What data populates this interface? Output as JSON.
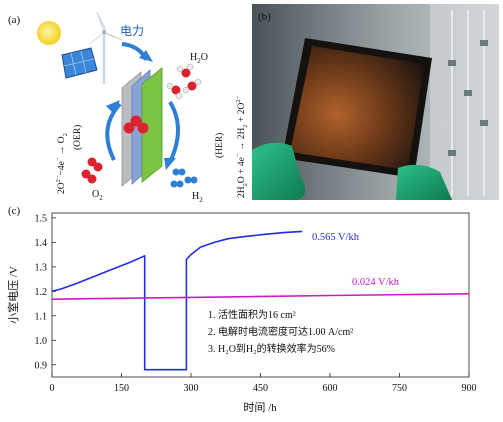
{
  "panels": {
    "a": {
      "label": "(a)",
      "power_text": "电力",
      "h2o": [
        "H",
        "2",
        "O"
      ],
      "h2": [
        "H",
        "2"
      ],
      "o2": [
        "O",
        "2"
      ],
      "her": "(HER)",
      "oer": "(OER)"
    },
    "b": {
      "label": "(b)"
    },
    "c": {
      "label": "(c)"
    }
  },
  "colors": {
    "sun": "#f5d21a",
    "blue_arrow": "#2f7fd6",
    "green_electrode": "#7cc544",
    "membrane": "#8aa3d6",
    "oxygen_red": "#d9232e",
    "hydrogen_blue": "#2f7fd6",
    "series_blue": "#1f2fe0",
    "series_magenta": "#cc19c8"
  },
  "chart_data": {
    "type": "line",
    "xlabel": "时间 /h",
    "ylabel": "小室电压 /V",
    "xlim": [
      0,
      900
    ],
    "ylim": [
      0.85,
      1.52
    ],
    "xticks": [
      0,
      150,
      300,
      450,
      600,
      750,
      900
    ],
    "yticks": [
      0.9,
      1.0,
      1.1,
      1.2,
      1.3,
      1.4,
      1.5
    ],
    "grid": false,
    "series": [
      {
        "name": "0.565 V/kh",
        "color": "#1f2fe0",
        "x": [
          0,
          20,
          50,
          90,
          130,
          170,
          200,
          200,
          203,
          290,
          290,
          300,
          320,
          350,
          380,
          420,
          460,
          500,
          540
        ],
        "y": [
          1.2,
          1.21,
          1.23,
          1.26,
          1.29,
          1.32,
          1.345,
          0.88,
          0.88,
          0.88,
          1.33,
          1.35,
          1.38,
          1.4,
          1.415,
          1.425,
          1.433,
          1.44,
          1.445
        ]
      },
      {
        "name": "0.024 V/kh",
        "color": "#cc19c8",
        "x": [
          0,
          300,
          600,
          900
        ],
        "y": [
          1.168,
          1.175,
          1.183,
          1.19
        ]
      }
    ],
    "annotations": [
      "1. 活性面积为16 cm²",
      "2. 电解时电流密度可达1.00 A/cm²",
      "3. H₂O到H₂的转换效率为56%"
    ]
  }
}
